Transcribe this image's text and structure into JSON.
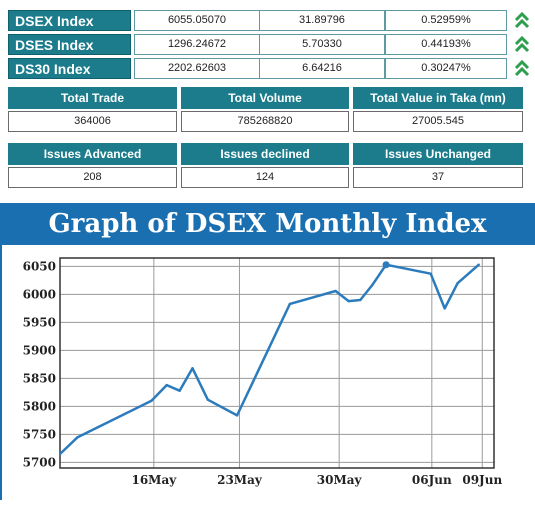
{
  "indices": [
    {
      "name": "DSEX Index",
      "value": "6055.05070",
      "change": "31.89796",
      "percent": "0.52959%",
      "trend": "up-arrow-icon"
    },
    {
      "name": "DSES Index",
      "value": "1296.24672",
      "change": "5.70330",
      "percent": "0.44193%",
      "trend": "up-arrow-icon"
    },
    {
      "name": "DS30 Index",
      "value": "2202.62603",
      "change": "6.64216",
      "percent": "0.30247%",
      "trend": "up-arrow-icon"
    }
  ],
  "totals": {
    "trade_label": "Total Trade",
    "trade_value": "364006",
    "volume_label": "Total Volume",
    "volume_value": "785268820",
    "taka_label": "Total Value in Taka (mn)",
    "taka_value": "27005.545"
  },
  "issues": {
    "advanced_label": "Issues Advanced",
    "advanced_value": "208",
    "declined_label": "Issues declined",
    "declined_value": "124",
    "unchanged_label": "Issues Unchanged",
    "unchanged_value": "37"
  },
  "colors": {
    "header_teal": "#1c7c8c",
    "banner_blue": "#1a6fb0",
    "line": "#2b7bbd",
    "arrow_green": "#2e9e4f"
  },
  "chart_data": {
    "type": "line",
    "title": "Graph of DSEX Monthly Index",
    "xlabel": "",
    "ylabel": "",
    "x_tick_labels": [
      "16May",
      "23May",
      "30May",
      "06Jun",
      "09Jun"
    ],
    "x_tick_positions": [
      8.0,
      15.3,
      23.8,
      31.7,
      36.0
    ],
    "y_ticks": [
      5700,
      5750,
      5800,
      5850,
      5900,
      5950,
      6000,
      6050
    ],
    "ylim": [
      5690,
      6065
    ],
    "xlim": [
      0,
      37
    ],
    "grid": true,
    "series": [
      {
        "x": [
          0,
          1.5,
          7.8,
          9.1,
          10.2,
          11.3,
          12.6,
          15.1,
          19.6,
          23.5,
          24.6,
          25.6,
          26.6,
          27.8,
          31.6,
          32.8,
          33.9,
          35.7
        ],
        "values": [
          5715,
          5745,
          5810,
          5838,
          5828,
          5868,
          5812,
          5784,
          5983,
          6006,
          5988,
          5990,
          6016,
          6053,
          6037,
          5975,
          6020,
          6053
        ]
      }
    ]
  }
}
